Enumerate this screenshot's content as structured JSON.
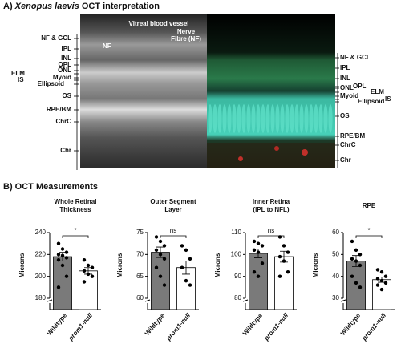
{
  "panel_a": {
    "title_prefix": "A)",
    "title_italic": "Xenopus laevis",
    "title_suffix": "OCT interpretation",
    "image_labels": [
      "NF",
      "Vitreal blood vessel",
      "Nerve",
      "Fibre (NF)"
    ],
    "left_labels": [
      "NF & GCL",
      "IPL",
      "INL",
      "OPL",
      "ONL",
      "ELM",
      "Myoid",
      "IS",
      "Ellipsoid",
      "OS",
      "RPE/BM",
      "ChrC",
      "Chr"
    ],
    "right_labels": [
      "NF & GCL",
      "IPL",
      "INL",
      "ONL",
      "OPL",
      "ELM",
      "Myoid",
      "IS",
      "Ellipsoid",
      "OS",
      "RPE/BM",
      "ChrC",
      "Chr"
    ]
  },
  "panel_b": {
    "title": "B) OCT Measurements"
  },
  "chart_data": [
    {
      "type": "bar",
      "title": [
        "Whole Retinal",
        "Thickness"
      ],
      "y_label": "Microns",
      "categories": [
        "Wildtype",
        "prom1-null"
      ],
      "values": [
        218,
        205
      ],
      "errors": [
        4,
        3
      ],
      "colors": [
        "#7a7a7a",
        "#ffffff"
      ],
      "points": [
        [
          230,
          225,
          222,
          220,
          219,
          217,
          215,
          210,
          200,
          190
        ],
        [
          215,
          210,
          208,
          205,
          202,
          200,
          195
        ]
      ],
      "significance": "*",
      "ylim": [
        180,
        240
      ],
      "yticks": [
        180,
        200,
        220,
        240
      ]
    },
    {
      "type": "bar",
      "title": [
        "Outer Segment",
        "Layer"
      ],
      "y_label": "Microns",
      "categories": [
        "Wildtype",
        "prom1-null"
      ],
      "values": [
        70.5,
        67
      ],
      "errors": [
        1.2,
        1.5
      ],
      "colors": [
        "#7a7a7a",
        "#ffffff"
      ],
      "points": [
        [
          74,
          73,
          72,
          71,
          70,
          69,
          67,
          65,
          63
        ],
        [
          72,
          71,
          69,
          67,
          64,
          63
        ]
      ],
      "significance": "ns",
      "ylim": [
        60,
        75
      ],
      "yticks": [
        60,
        65,
        70,
        75
      ]
    },
    {
      "type": "bar",
      "title": [
        "Inner Retina",
        "(IPL to NFL)"
      ],
      "y_label": "Microns",
      "categories": [
        "Wildtype",
        "prom1-null"
      ],
      "values": [
        100.5,
        99
      ],
      "errors": [
        2,
        2.5
      ],
      "colors": [
        "#7a7a7a",
        "#ffffff"
      ],
      "points": [
        [
          106,
          105,
          104,
          102,
          101,
          96,
          92,
          90
        ],
        [
          108,
          104,
          101,
          99,
          97,
          92,
          90
        ]
      ],
      "significance": "ns",
      "ylim": [
        80,
        110
      ],
      "yticks": [
        80,
        90,
        100,
        110
      ]
    },
    {
      "type": "bar",
      "title": [
        "RPE"
      ],
      "y_label": "Microns",
      "categories": [
        "Wildtype",
        "prom1-null"
      ],
      "values": [
        47,
        38.5
      ],
      "errors": [
        2.5,
        1.2
      ],
      "colors": [
        "#7a7a7a",
        "#ffffff"
      ],
      "points": [
        [
          56,
          52,
          50,
          48,
          47,
          45,
          40,
          37,
          35
        ],
        [
          43,
          42,
          40,
          39,
          38,
          37,
          36,
          34
        ]
      ],
      "significance": "*",
      "ylim": [
        30,
        60
      ],
      "yticks": [
        30,
        40,
        50,
        60
      ]
    }
  ]
}
